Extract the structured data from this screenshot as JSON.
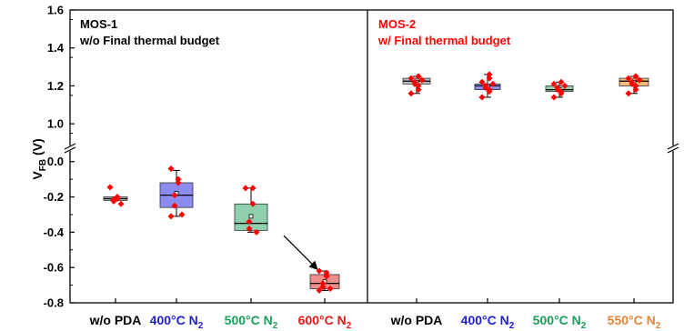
{
  "chart_data": {
    "type": "box",
    "ylabel": "V",
    "ylabel_sub": "FB",
    "ylabel_unit": " (V)",
    "axis_break": true,
    "y_upper_ticks": [
      "1.6",
      "1.4",
      "1.2",
      "1.0"
    ],
    "y_lower_ticks": [
      "0.0",
      "-0.2",
      "-0.4",
      "-0.6",
      "-0.8"
    ],
    "y_upper_range": [
      0.9,
      1.6
    ],
    "y_lower_range": [
      -0.8,
      0.05
    ],
    "colors": {
      "points": "#ff0000",
      "gray": "#bdbdbd",
      "blue": "#8c8cf0",
      "green": "#8fd1ae",
      "red": "#f08c8c",
      "orange": "#f5b97a",
      "label_black": "#000000",
      "label_blue": "#1f1fd6",
      "label_green": "#1aa05a",
      "label_red": "#e01b1b",
      "label_orange": "#e0863a"
    },
    "panels": [
      {
        "title_line1": "MOS-1",
        "title_line2": "w/o Final thermal budget",
        "title_color": "#000000",
        "groups": [
          {
            "label": "w/o PDA",
            "sub": "",
            "label_color": "label_black",
            "box_color": "gray",
            "q1": -0.22,
            "median": -0.21,
            "q3": -0.2,
            "mean": -0.21,
            "whisker_low": -0.22,
            "whisker_high": -0.2,
            "points": [
              -0.145,
              -0.2,
              -0.21,
              -0.215,
              -0.225,
              -0.24
            ]
          },
          {
            "label": "400°C N",
            "sub": "2",
            "label_color": "label_blue",
            "box_color": "blue",
            "q1": -0.26,
            "median": -0.19,
            "q3": -0.12,
            "mean": -0.18,
            "whisker_low": -0.31,
            "whisker_high": -0.05,
            "points": [
              -0.04,
              -0.1,
              -0.12,
              -0.19,
              -0.25,
              -0.3,
              -0.31
            ]
          },
          {
            "label": "500°C N",
            "sub": "2",
            "label_color": "label_green",
            "box_color": "green",
            "q1": -0.39,
            "median": -0.35,
            "q3": -0.24,
            "mean": -0.31,
            "whisker_low": -0.4,
            "whisker_high": -0.15,
            "points": [
              -0.15,
              -0.15,
              -0.24,
              -0.34,
              -0.38,
              -0.4
            ]
          },
          {
            "label": "600°C N",
            "sub": "2",
            "label_color": "label_red",
            "box_color": "red",
            "q1": -0.72,
            "median": -0.69,
            "q3": -0.64,
            "mean": -0.68,
            "whisker_low": -0.73,
            "whisker_high": -0.62,
            "points": [
              -0.62,
              -0.63,
              -0.65,
              -0.69,
              -0.71,
              -0.72,
              -0.73
            ]
          }
        ]
      },
      {
        "title_line1": "MOS-2",
        "title_line2": "w/ Final thermal budget",
        "title_color": "#ff0000",
        "groups": [
          {
            "label": "w/o PDA",
            "sub": "",
            "label_color": "label_black",
            "box_color": "gray",
            "q1": 1.21,
            "median": 1.225,
            "q3": 1.24,
            "mean": 1.22,
            "whisker_low": 1.16,
            "whisker_high": 1.25,
            "points": [
              1.16,
              1.18,
              1.2,
              1.21,
              1.22,
              1.23,
              1.24,
              1.25,
              1.25
            ]
          },
          {
            "label": "400°C N",
            "sub": "2",
            "label_color": "label_blue",
            "box_color": "blue",
            "q1": 1.18,
            "median": 1.2,
            "q3": 1.21,
            "mean": 1.2,
            "whisker_low": 1.14,
            "whisker_high": 1.26,
            "points": [
              1.14,
              1.17,
              1.18,
              1.19,
              1.2,
              1.21,
              1.22,
              1.24,
              1.26
            ]
          },
          {
            "label": "500°C N",
            "sub": "2",
            "label_color": "label_green",
            "box_color": "green",
            "q1": 1.17,
            "median": 1.18,
            "q3": 1.2,
            "mean": 1.18,
            "whisker_low": 1.14,
            "whisker_high": 1.22,
            "points": [
              1.14,
              1.16,
              1.17,
              1.18,
              1.19,
              1.2,
              1.21,
              1.22
            ]
          },
          {
            "label": "550°C N",
            "sub": "2",
            "label_color": "label_orange",
            "box_color": "orange",
            "q1": 1.2,
            "median": 1.225,
            "q3": 1.24,
            "mean": 1.22,
            "whisker_low": 1.16,
            "whisker_high": 1.25,
            "points": [
              1.16,
              1.18,
              1.2,
              1.21,
              1.22,
              1.23,
              1.24,
              1.25,
              1.25
            ]
          }
        ]
      }
    ]
  }
}
